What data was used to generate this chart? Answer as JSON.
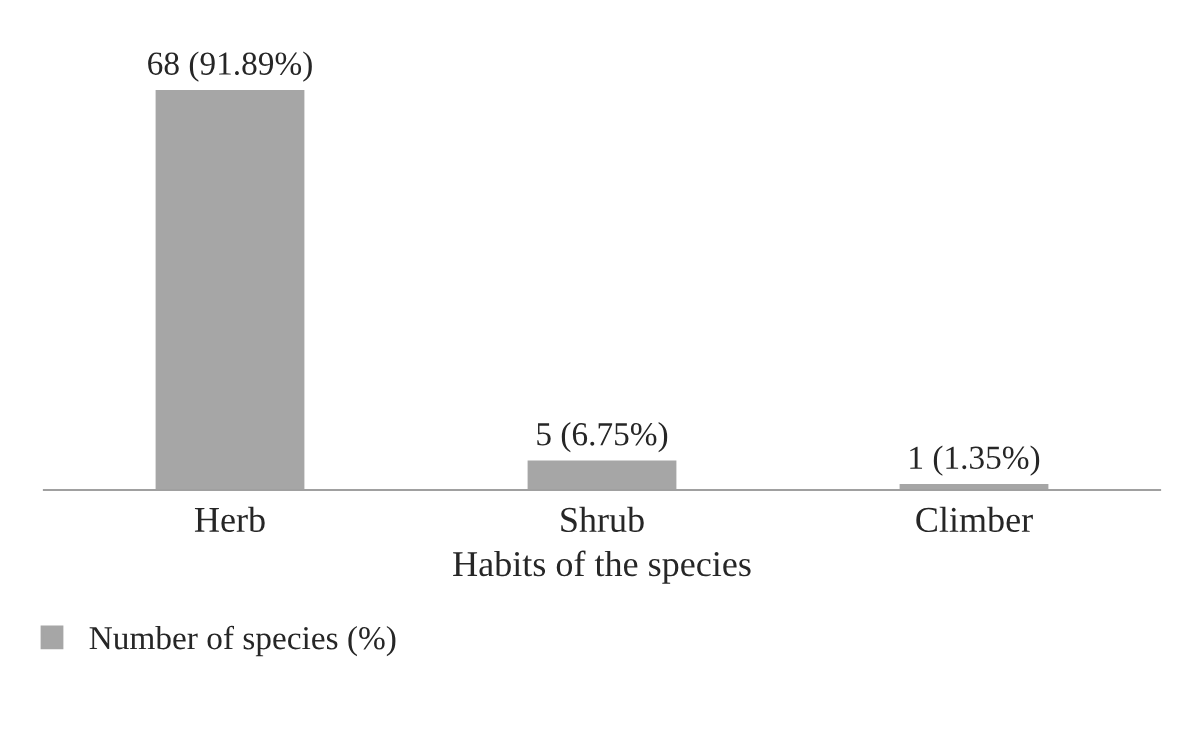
{
  "chart_data": {
    "type": "bar",
    "xlabel": "Habits of the species",
    "categories": [
      "Herb",
      "Shrub",
      "Climber"
    ],
    "series": [
      {
        "name": "Number of species (%)",
        "color": "#a6a6a6",
        "values": [
          68,
          5,
          1
        ],
        "value_labels": [
          "68 (91.89%)",
          "5 (6.75%)",
          "1 (1.35%)"
        ]
      }
    ],
    "tick_labels": "x",
    "grid": false,
    "legend": "bottom left"
  }
}
